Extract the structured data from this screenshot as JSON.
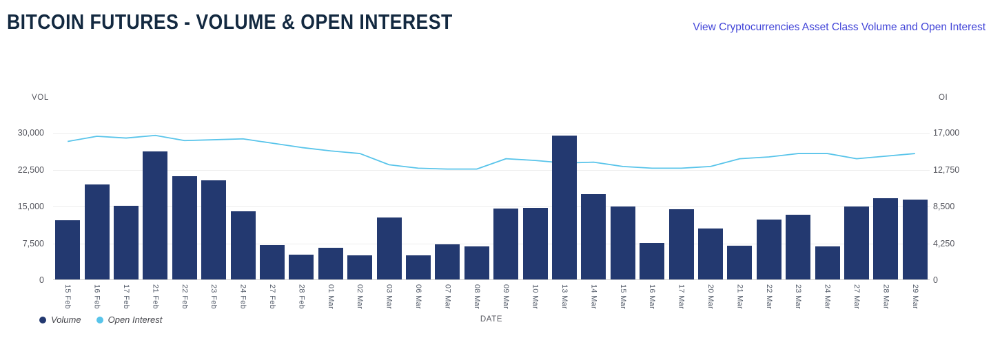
{
  "header": {
    "title": "BITCOIN FUTURES - VOLUME & OPEN INTEREST",
    "link_label": "View Cryptocurrencies Asset Class Volume and Open Interest"
  },
  "chart_data": {
    "type": "bar",
    "title": "BITCOIN FUTURES - VOLUME & OPEN INTEREST",
    "xlabel": "DATE",
    "categories": [
      "15 Feb",
      "16 Feb",
      "17 Feb",
      "21 Feb",
      "22 Feb",
      "23 Feb",
      "24 Feb",
      "27 Feb",
      "28 Feb",
      "01 Mar",
      "02 Mar",
      "03 Mar",
      "06 Mar",
      "07 Mar",
      "08 Mar",
      "09 Mar",
      "10 Mar",
      "13 Mar",
      "14 Mar",
      "15 Mar",
      "16 Mar",
      "17 Mar",
      "20 Mar",
      "21 Mar",
      "22 Mar",
      "23 Mar",
      "24 Mar",
      "27 Mar",
      "28 Mar",
      "29 Mar"
    ],
    "series": [
      {
        "name": "Volume",
        "render": "bar",
        "axis": "left",
        "color": "#233970",
        "values": [
          12000,
          19400,
          15000,
          26100,
          21000,
          20200,
          13900,
          7000,
          5000,
          6400,
          4900,
          12600,
          4900,
          7200,
          6700,
          14500,
          14600,
          29300,
          17400,
          14800,
          7400,
          14300,
          10400,
          6900,
          12200,
          13200,
          6800,
          14800,
          16500,
          16300
        ]
      },
      {
        "name": "Open Interest",
        "render": "line",
        "axis": "right",
        "color": "#58c4ea",
        "values": [
          16000,
          16600,
          16400,
          16700,
          16100,
          16200,
          16300,
          15800,
          15300,
          14900,
          14600,
          13300,
          12900,
          12800,
          12800,
          14000,
          13800,
          13500,
          13600,
          13100,
          12900,
          12900,
          13100,
          14000,
          14200,
          14600,
          14600,
          14000,
          14300,
          14600
        ]
      }
    ],
    "left_axis": {
      "label": "VOL",
      "ylim": [
        0,
        30000
      ],
      "ticks": [
        "30,000",
        "22,500",
        "15,000",
        "7,500",
        "0"
      ]
    },
    "right_axis": {
      "label": "OI",
      "ylim": [
        0,
        17000
      ],
      "ticks": [
        "17,000",
        "12,750",
        "8,500",
        "4,250",
        "0"
      ]
    },
    "grid": true,
    "legend_position": "bottom-left",
    "legend": [
      {
        "label": "Volume",
        "color": "#233970"
      },
      {
        "label": "Open Interest",
        "color": "#58c4ea"
      }
    ]
  }
}
